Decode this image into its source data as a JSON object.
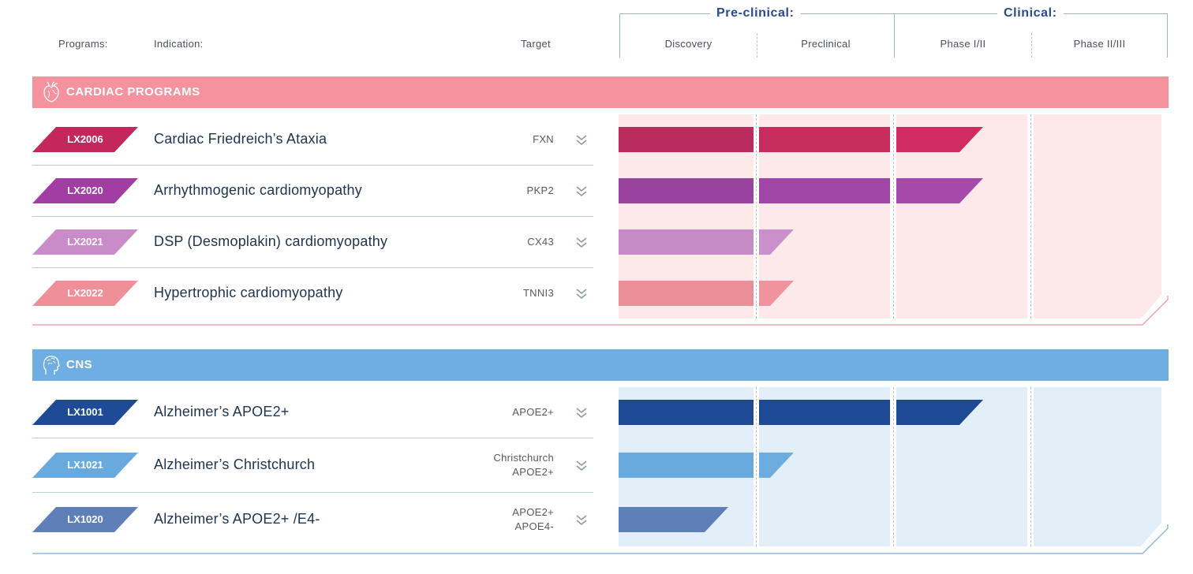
{
  "header": {
    "programs_label": "Programs:",
    "indication_label": "Indication:",
    "target_label": "Target",
    "group_preclinical": "Pre-clinical:",
    "group_clinical": "Clinical:",
    "phases": [
      "Discovery",
      "Preclinical",
      "Phase I/II",
      "Phase II/III"
    ]
  },
  "colors": {
    "cardiac_bar": "#f4929e",
    "cardiac_panel": "#fde8ea",
    "cns_bar": "#6eaee2",
    "cns_panel": "#e2eef8",
    "text_dark": "#1e3350",
    "heading_blue": "#2a4a8c"
  },
  "sections": [
    {
      "title": "CARDIAC PROGRAMS",
      "icon": "heart-icon",
      "programs": [
        {
          "id": "LX2006",
          "indication": "Cardiac Friedreich’s Ataxia",
          "target": [
            "FXN"
          ],
          "color": "#c4275c",
          "progress": "Phase I/II"
        },
        {
          "id": "LX2020",
          "indication": "Arrhythmogenic cardiomyopathy",
          "target": [
            "PKP2"
          ],
          "color": "#a23ea3",
          "progress": "Phase I/II"
        },
        {
          "id": "LX2021",
          "indication": "DSP (Desmoplakin) cardiomyopathy",
          "target": [
            "CX43"
          ],
          "color": "#c98cc9",
          "progress": "Preclinical"
        },
        {
          "id": "LX2022",
          "indication": "Hypertrophic cardiomyopathy",
          "target": [
            "TNNI3"
          ],
          "color": "#ef9099",
          "progress": "Preclinical"
        }
      ]
    },
    {
      "title": "CNS",
      "icon": "brain-icon",
      "programs": [
        {
          "id": "LX1001",
          "indication": "Alzheimer’s APOE2+",
          "target": [
            "APOE2+"
          ],
          "color": "#1f4a96",
          "progress": "Phase I/II"
        },
        {
          "id": "LX1021",
          "indication": "Alzheimer’s Christchurch",
          "target": [
            "Christchurch",
            "APOE2+"
          ],
          "color": "#69aade",
          "progress": "Preclinical"
        },
        {
          "id": "LX1020",
          "indication": "Alzheimer’s APOE2+ /E4-",
          "target": [
            "APOE2+",
            "APOE4-"
          ],
          "color": "#5f7fb9",
          "progress": "Discovery"
        }
      ]
    }
  ]
}
